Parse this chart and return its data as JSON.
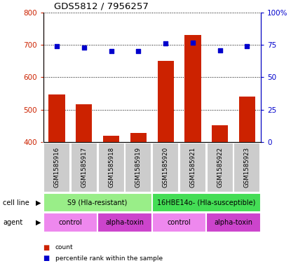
{
  "title": "GDS5812 / 7956257",
  "samples": [
    "GSM1585916",
    "GSM1585917",
    "GSM1585918",
    "GSM1585919",
    "GSM1585920",
    "GSM1585921",
    "GSM1585922",
    "GSM1585923"
  ],
  "counts": [
    547,
    517,
    420,
    427,
    651,
    730,
    452,
    541
  ],
  "percentiles": [
    74,
    73,
    70,
    70,
    76,
    77,
    71,
    74
  ],
  "ylim_left": [
    400,
    800
  ],
  "ylim_right": [
    0,
    100
  ],
  "yticks_left": [
    400,
    500,
    600,
    700,
    800
  ],
  "yticks_right": [
    0,
    25,
    50,
    75,
    100
  ],
  "bar_color": "#cc2200",
  "dot_color": "#0000cc",
  "bar_bottom": 400,
  "cell_line_color1": "#99ee88",
  "cell_line_color2": "#44dd55",
  "agent_color_light": "#ee88ee",
  "agent_color_dark": "#cc44cc",
  "sample_bg_color": "#cccccc",
  "cell_lines": [
    {
      "label": "S9 (Hla-resistant)",
      "start": 0,
      "end": 4
    },
    {
      "label": "16HBE14o- (Hla-susceptible)",
      "start": 4,
      "end": 8
    }
  ],
  "agents": [
    {
      "label": "control",
      "start": 0,
      "end": 2,
      "color": "#ee88ee"
    },
    {
      "label": "alpha-toxin",
      "start": 2,
      "end": 4,
      "color": "#cc44cc"
    },
    {
      "label": "control",
      "start": 4,
      "end": 6,
      "color": "#ee88ee"
    },
    {
      "label": "alpha-toxin",
      "start": 6,
      "end": 8,
      "color": "#cc44cc"
    }
  ],
  "legend_count_color": "#cc2200",
  "legend_pct_color": "#0000cc",
  "ylabel_left_color": "#cc2200",
  "ylabel_right_color": "#0000cc"
}
